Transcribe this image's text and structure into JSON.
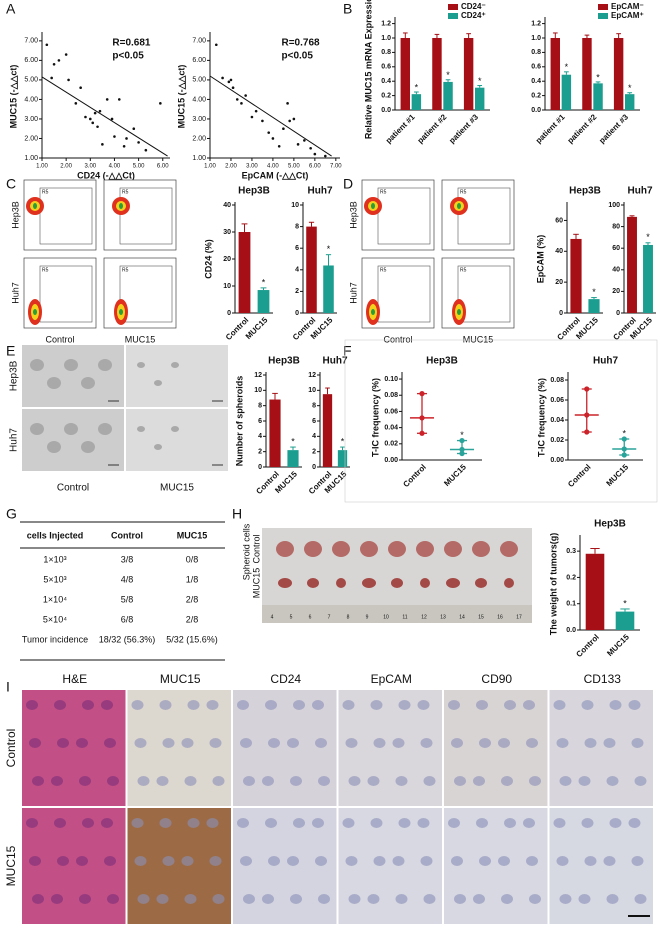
{
  "panel_labels": [
    "A",
    "B",
    "C",
    "D",
    "E",
    "F",
    "G",
    "H",
    "I"
  ],
  "chart_data": [
    {
      "type": "scatter",
      "xlabel": "CD24 (-△△Ct)",
      "ylabel": "MUC15 (-△△ct)",
      "annotations": [
        "R=0.681",
        "p<0.05"
      ],
      "color": "#111111",
      "x": [
        1.2,
        1.4,
        1.5,
        1.7,
        2.0,
        2.1,
        2.4,
        2.6,
        2.8,
        3.0,
        3.1,
        3.2,
        3.3,
        3.4,
        3.5,
        3.7,
        3.9,
        4.0,
        4.2,
        4.4,
        4.5,
        4.8,
        5.0,
        5.3,
        5.9
      ],
      "y": [
        6.8,
        5.1,
        5.8,
        6.0,
        6.3,
        5.0,
        3.8,
        4.6,
        3.1,
        3.0,
        2.8,
        3.3,
        2.6,
        3.4,
        1.7,
        4.0,
        3.0,
        2.1,
        4.0,
        1.6,
        2.0,
        2.5,
        1.8,
        1.4,
        3.8
      ],
      "trendline": {
        "x": [
          1,
          6.2
        ],
        "y": [
          5.15,
          1.1
        ]
      },
      "xlim": [
        1,
        6.3
      ],
      "ylim": [
        1,
        7.3
      ],
      "xticks": [
        {
          "value": 1,
          "label": "1.00"
        },
        {
          "value": 2,
          "label": "2.00"
        },
        {
          "value": 3,
          "label": "3.00"
        },
        {
          "value": 4,
          "label": "4.00"
        },
        {
          "value": 5,
          "label": "5.00"
        },
        {
          "value": 6,
          "label": "6.00"
        }
      ],
      "yticks": [
        {
          "value": 1,
          "label": "1.00"
        },
        {
          "value": 2,
          "label": "2.00"
        },
        {
          "value": 3,
          "label": "3.00"
        },
        {
          "value": 4,
          "label": "4.00"
        },
        {
          "value": 5,
          "label": "5.00"
        },
        {
          "value": 6,
          "label": "6.00"
        },
        {
          "value": 7,
          "label": "7.00"
        }
      ]
    },
    {
      "type": "scatter",
      "xlabel": "EpCAM (-△△Ct)",
      "ylabel": "MUC15 (-△△ct)",
      "annotations": [
        "R=0.768",
        "p<0.05"
      ],
      "color": "#111111",
      "x": [
        1.3,
        1.6,
        1.9,
        2.0,
        2.1,
        2.3,
        2.5,
        2.7,
        3.0,
        3.2,
        3.5,
        3.8,
        4.0,
        4.3,
        4.5,
        4.7,
        4.8,
        5.0,
        5.2,
        5.5,
        5.8,
        6.0,
        6.5
      ],
      "y": [
        6.8,
        5.1,
        4.9,
        5.0,
        4.6,
        4.0,
        3.8,
        4.2,
        3.1,
        3.4,
        2.9,
        2.3,
        2.0,
        1.6,
        2.5,
        3.8,
        2.9,
        3.0,
        1.7,
        1.9,
        1.5,
        1.2,
        1.1
      ],
      "trendline": {
        "x": [
          1,
          6.8
        ],
        "y": [
          5.2,
          1.1
        ]
      },
      "xlim": [
        1,
        7.2
      ],
      "ylim": [
        1,
        7.3
      ],
      "xticks": [
        {
          "value": 1,
          "label": "1.00"
        },
        {
          "value": 2,
          "label": "2.00"
        },
        {
          "value": 3,
          "label": "3.00"
        },
        {
          "value": 4,
          "label": "4.00"
        },
        {
          "value": 5,
          "label": "5.00"
        },
        {
          "value": 6,
          "label": "6.00"
        },
        {
          "value": 7,
          "label": "7.00"
        }
      ],
      "yticks": [
        {
          "value": 1,
          "label": "1.00"
        },
        {
          "value": 2,
          "label": "2.00"
        },
        {
          "value": 3,
          "label": "3.00"
        },
        {
          "value": 4,
          "label": "4.00"
        },
        {
          "value": 5,
          "label": "5.00"
        },
        {
          "value": 6,
          "label": "6.00"
        },
        {
          "value": 7,
          "label": "7.00"
        }
      ]
    },
    {
      "type": "bar",
      "ylabel": "Relative MUC15 mRNA Expression",
      "categories": [
        "patient #1",
        "patient #2",
        "patient #3"
      ],
      "series": [
        {
          "name": "CD24⁻",
          "color": "#a50f15",
          "values": [
            1,
            1,
            1
          ],
          "errors": [
            0.07,
            0.05,
            0.06
          ]
        },
        {
          "name": "CD24⁺",
          "color": "#1b9e8f",
          "values": [
            0.22,
            0.39,
            0.31
          ],
          "errors": [
            0.03,
            0.03,
            0.03
          ],
          "significance": "*"
        }
      ],
      "ylim": [
        0,
        1.25
      ],
      "yticks": [
        {
          "value": 0,
          "label": "0.0"
        },
        0.2,
        0.4,
        0.6,
        0.8,
        {
          "value": 1,
          "label": "1.0"
        },
        1.2
      ]
    },
    {
      "type": "bar",
      "categories": [
        "patient #1",
        "patient #2",
        "patient #3"
      ],
      "series": [
        {
          "name": "EpCAM⁻",
          "color": "#a50f15",
          "values": [
            1,
            1,
            1
          ],
          "errors": [
            0.07,
            0.04,
            0.06
          ]
        },
        {
          "name": "EpCAM⁺",
          "color": "#1b9e8f",
          "values": [
            0.49,
            0.37,
            0.22
          ],
          "errors": [
            0.04,
            0.02,
            0.02
          ],
          "significance": "*"
        }
      ],
      "ylim": [
        0,
        1.25
      ],
      "yticks": [
        {
          "value": 0,
          "label": "0.0"
        },
        0.2,
        0.4,
        0.6,
        0.8,
        {
          "value": 1,
          "label": "1.0"
        },
        1.2
      ]
    },
    {
      "type": "bar",
      "title": "Hep3B",
      "ylabel": "CD24 (%)",
      "categories": [
        "Control",
        "MUC15"
      ],
      "values": [
        30,
        8.5
      ],
      "errors": [
        3,
        0.8
      ],
      "colors": [
        "#a50f15",
        "#1b9e8f"
      ],
      "annotations": [
        {
          "category": "MUC15",
          "text": "*"
        }
      ],
      "ylim": [
        0,
        40
      ],
      "yticks": [
        0,
        10,
        20,
        30,
        40
      ]
    },
    {
      "type": "bar",
      "title": "Huh7",
      "categories": [
        "Control",
        "MUC15"
      ],
      "values": [
        8,
        4.4
      ],
      "errors": [
        0.4,
        1.0
      ],
      "colors": [
        "#a50f15",
        "#1b9e8f"
      ],
      "annotations": [
        {
          "category": "MUC15",
          "text": "*"
        }
      ],
      "ylim": [
        0,
        10
      ],
      "yticks": [
        0,
        2,
        4,
        6,
        8,
        10
      ]
    },
    {
      "type": "bar",
      "title": "Hep3B",
      "ylabel": "EpCAM (%)",
      "categories": [
        "Control",
        "MUC15"
      ],
      "values": [
        48,
        9
      ],
      "errors": [
        3,
        1
      ],
      "colors": [
        "#a50f15",
        "#1b9e8f"
      ],
      "annotations": [
        {
          "category": "MUC15",
          "text": "*"
        }
      ],
      "ylim": [
        0,
        70
      ],
      "yticks": [
        0,
        20,
        40,
        60
      ]
    },
    {
      "type": "bar",
      "title": "Huh7",
      "categories": [
        "Control",
        "MUC15"
      ],
      "values": [
        89,
        63
      ],
      "errors": [
        1,
        2
      ],
      "colors": [
        "#a50f15",
        "#1b9e8f"
      ],
      "annotations": [
        {
          "category": "MUC15",
          "text": "*"
        }
      ],
      "ylim": [
        0,
        100
      ],
      "yticks": [
        0,
        20,
        40,
        60,
        80,
        100
      ]
    },
    {
      "type": "bar",
      "title": "Hep3B",
      "ylabel": "Number of spheroids",
      "categories": [
        "Control",
        "MUC15"
      ],
      "values": [
        8.8,
        2.2
      ],
      "errors": [
        0.8,
        0.4
      ],
      "colors": [
        "#a50f15",
        "#1b9e8f"
      ],
      "annotations": [
        {
          "category": "MUC15",
          "text": "*"
        }
      ],
      "ylim": [
        0,
        12
      ],
      "yticks": [
        0,
        2,
        4,
        6,
        8,
        10,
        12
      ]
    },
    {
      "type": "bar",
      "title": "Huh7",
      "categories": [
        "Control",
        "MUC15"
      ],
      "values": [
        9.5,
        2.2
      ],
      "errors": [
        0.8,
        0.4
      ],
      "colors": [
        "#a50f15",
        "#1b9e8f"
      ],
      "annotations": [
        {
          "category": "MUC15",
          "text": "*"
        }
      ],
      "ylim": [
        0,
        12
      ],
      "yticks": [
        0,
        2,
        4,
        6,
        8,
        10,
        12
      ]
    },
    {
      "type": "dot",
      "title": "Hep3B",
      "ylabel": "T-IC frequency (%)",
      "categories": [
        "Control",
        "MUC15"
      ],
      "colors": [
        "#cc2229",
        "#2aa39a"
      ],
      "points": [
        [
          0.082,
          0.052,
          0.033
        ],
        [
          0.024,
          0.013,
          0.008
        ]
      ],
      "means": [
        0.052,
        0.013
      ],
      "whiskers": [
        [
          0.033,
          0.082
        ],
        [
          0.008,
          0.024
        ]
      ],
      "annotations": [
        {
          "category": "MUC15",
          "text": "*"
        }
      ],
      "ylim": [
        0,
        0.105
      ],
      "yticks": [
        {
          "value": 0,
          "label": "0.00"
        },
        0.02,
        0.04,
        0.06,
        0.08,
        {
          "value": 0.1,
          "label": "0.10"
        }
      ]
    },
    {
      "type": "dot",
      "title": "Huh7",
      "ylabel": "T-IC frequency (%)",
      "categories": [
        "Control",
        "MUC15"
      ],
      "colors": [
        "#cc2229",
        "#2aa39a"
      ],
      "points": [
        [
          0.071,
          0.045,
          0.028
        ],
        [
          0.021,
          0.011,
          0.005
        ]
      ],
      "means": [
        0.045,
        0.011
      ],
      "whiskers": [
        [
          0.028,
          0.071
        ],
        [
          0.005,
          0.021
        ]
      ],
      "annotations": [
        {
          "category": "MUC15",
          "text": "*"
        }
      ],
      "ylim": [
        0,
        0.085
      ],
      "yticks": [
        {
          "value": 0,
          "label": "0.00"
        },
        0.02,
        0.04,
        0.06,
        0.08
      ]
    },
    {
      "type": "bar",
      "title": "Hep3B",
      "ylabel": "The weight of tumors(g)",
      "categories": [
        "Control",
        "MUC15"
      ],
      "values": [
        0.29,
        0.07
      ],
      "errors": [
        0.02,
        0.01
      ],
      "colors": [
        "#a50f15",
        "#1b9e8f"
      ],
      "annotations": [
        {
          "category": "MUC15",
          "text": "*"
        }
      ],
      "ylim": [
        0,
        0.35
      ],
      "yticks": [
        {
          "value": 0,
          "label": "0.0"
        },
        0.1,
        0.2,
        0.3
      ]
    }
  ],
  "images": {
    "C": {
      "rows": [
        "Hep3B",
        "Huh7"
      ],
      "cols": [
        "Control",
        "MUC15"
      ],
      "gate": "R5"
    },
    "D": {
      "rows": [
        "Hep3B",
        "Huh7"
      ],
      "cols": [
        "Control",
        "MUC15"
      ],
      "gate": "R5"
    },
    "E": {
      "rows": [
        "Hep3B",
        "Huh7"
      ],
      "cols": [
        "Control",
        "MUC15"
      ]
    },
    "H": {
      "side": "Spheroid cells",
      "rows": [
        "Control",
        "MUC15"
      ],
      "ruler": [
        "4",
        "5",
        "6",
        "7",
        "8",
        "9",
        "10",
        "11",
        "12",
        "13",
        "14",
        "15",
        "16",
        "17"
      ]
    },
    "I": {
      "cols": [
        "H&E",
        "MUC15",
        "CD24",
        "EpCAM",
        "CD90",
        "CD133"
      ],
      "rows": [
        "Control",
        "MUC15"
      ]
    }
  },
  "table": {
    "header": [
      "cells Injected",
      "Control",
      "MUC15"
    ],
    "rows": [
      [
        "1×10³",
        "3/8",
        "0/8"
      ],
      [
        "5×10³",
        "4/8",
        "1/8"
      ],
      [
        "1×10⁴",
        "5/8",
        "2/8"
      ],
      [
        "5×10⁴",
        "6/8",
        "2/8"
      ],
      [
        "Tumor incidence",
        "18/32 (56.3%)",
        "5/32 (15.6%)"
      ]
    ]
  }
}
